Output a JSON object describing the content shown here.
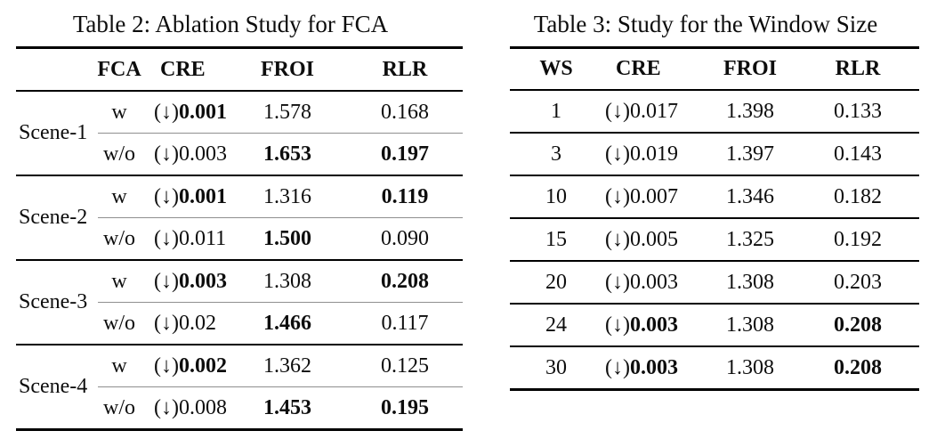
{
  "table2": {
    "title": "Table 2: Ablation Study for FCA",
    "headers": {
      "fca": "FCA",
      "cre": "CRE",
      "froi": "FROI",
      "rlr": "RLR"
    },
    "arrow": "(↓)",
    "groups": [
      {
        "scene": "Scene-1",
        "rows": [
          {
            "fca": "w",
            "cre": "0.001",
            "cre_bold": true,
            "froi": "1.578",
            "froi_bold": false,
            "rlr": "0.168",
            "rlr_bold": false
          },
          {
            "fca": "w/o",
            "cre": "0.003",
            "cre_bold": false,
            "froi": "1.653",
            "froi_bold": true,
            "rlr": "0.197",
            "rlr_bold": true
          }
        ]
      },
      {
        "scene": "Scene-2",
        "rows": [
          {
            "fca": "w",
            "cre": "0.001",
            "cre_bold": true,
            "froi": "1.316",
            "froi_bold": false,
            "rlr": "0.119",
            "rlr_bold": true
          },
          {
            "fca": "w/o",
            "cre": "0.011",
            "cre_bold": false,
            "froi": "1.500",
            "froi_bold": true,
            "rlr": "0.090",
            "rlr_bold": false
          }
        ]
      },
      {
        "scene": "Scene-3",
        "rows": [
          {
            "fca": "w",
            "cre": "0.003",
            "cre_bold": true,
            "froi": "1.308",
            "froi_bold": false,
            "rlr": "0.208",
            "rlr_bold": true
          },
          {
            "fca": "w/o",
            "cre": "0.02",
            "cre_bold": false,
            "froi": "1.466",
            "froi_bold": true,
            "rlr": "0.117",
            "rlr_bold": false
          }
        ]
      },
      {
        "scene": "Scene-4",
        "rows": [
          {
            "fca": "w",
            "cre": "0.002",
            "cre_bold": true,
            "froi": "1.362",
            "froi_bold": false,
            "rlr": "0.125",
            "rlr_bold": false
          },
          {
            "fca": "w/o",
            "cre": "0.008",
            "cre_bold": false,
            "froi": "1.453",
            "froi_bold": true,
            "rlr": "0.195",
            "rlr_bold": true
          }
        ]
      }
    ]
  },
  "table3": {
    "title": "Table 3: Study for the Window Size",
    "headers": {
      "ws": "WS",
      "cre": "CRE",
      "froi": "FROI",
      "rlr": "RLR"
    },
    "arrow": "(↓)",
    "rows": [
      {
        "ws": "1",
        "cre": "0.017",
        "cre_bold": false,
        "froi": "1.398",
        "rlr": "0.133",
        "rlr_bold": false
      },
      {
        "ws": "3",
        "cre": "0.019",
        "cre_bold": false,
        "froi": "1.397",
        "rlr": "0.143",
        "rlr_bold": false
      },
      {
        "ws": "10",
        "cre": "0.007",
        "cre_bold": false,
        "froi": "1.346",
        "rlr": "0.182",
        "rlr_bold": false
      },
      {
        "ws": "15",
        "cre": "0.005",
        "cre_bold": false,
        "froi": "1.325",
        "rlr": "0.192",
        "rlr_bold": false
      },
      {
        "ws": "20",
        "cre": "0.003",
        "cre_bold": false,
        "froi": "1.308",
        "rlr": "0.203",
        "rlr_bold": false
      },
      {
        "ws": "24",
        "cre": "0.003",
        "cre_bold": true,
        "froi": "1.308",
        "rlr": "0.208",
        "rlr_bold": true
      },
      {
        "ws": "30",
        "cre": "0.003",
        "cre_bold": true,
        "froi": "1.308",
        "rlr": "0.208",
        "rlr_bold": true
      }
    ]
  }
}
